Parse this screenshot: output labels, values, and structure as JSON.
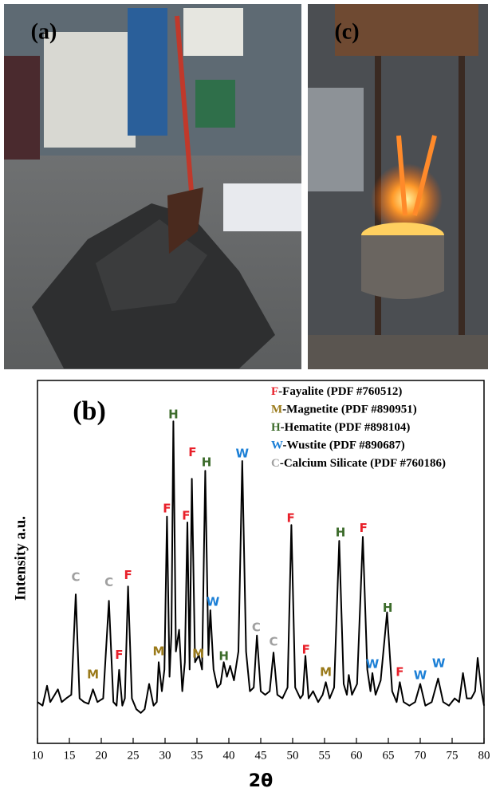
{
  "panel_labels": {
    "a": "(a)",
    "c": "(c)"
  },
  "chart_data": {
    "type": "line",
    "panel_label": "(b)",
    "x_label": "2θ",
    "y_label": "Intensity a.u.",
    "color": "#000000",
    "xlim": [
      10,
      80
    ],
    "ylim": [
      0,
      100
    ],
    "xticks": [
      10,
      15,
      20,
      25,
      30,
      35,
      40,
      45,
      50,
      55,
      60,
      65,
      70,
      75,
      80
    ],
    "x": [
      10,
      10.8,
      11.5,
      12,
      12.7,
      13.2,
      13.8,
      14.5,
      15.3,
      16,
      16.6,
      17.3,
      18,
      18.7,
      19.4,
      20.3,
      21.2,
      21.9,
      22.4,
      22.8,
      23.3,
      23.7,
      24.2,
      24.8,
      25.5,
      26.2,
      26.8,
      27.5,
      28.2,
      28.7,
      29,
      29.5,
      29.9,
      30.3,
      30.7,
      31,
      31.3,
      31.7,
      32.2,
      32.7,
      33.1,
      33.5,
      33.85,
      34.2,
      34.7,
      35.3,
      35.8,
      36.3,
      36.8,
      37.1,
      37.6,
      38.2,
      38.7,
      39.2,
      39.7,
      40.2,
      40.8,
      41.5,
      42.1,
      42.7,
      43.3,
      43.9,
      44.4,
      45,
      45.7,
      46.4,
      47,
      47.6,
      48.4,
      49.2,
      49.8,
      50.4,
      51.2,
      51.6,
      52,
      52.5,
      53.2,
      54,
      54.7,
      55.2,
      55.8,
      56.5,
      57.3,
      58,
      58.5,
      58.8,
      59.3,
      60.1,
      61,
      61.7,
      62.2,
      62.5,
      63,
      63.8,
      64.8,
      65.6,
      66.3,
      66.8,
      67.4,
      68.3,
      69.2,
      70,
      70.8,
      71.8,
      72.8,
      73.6,
      74.5,
      75.4,
      76.1,
      76.7,
      77.3,
      78,
      78.6,
      79,
      79.6,
      80
    ],
    "values": [
      11,
      10,
      15.5,
      11,
      13,
      14.5,
      11,
      12,
      13,
      40.8,
      12,
      11,
      10.5,
      14.5,
      11,
      12,
      39,
      11,
      10,
      19.9,
      10,
      12,
      43,
      12,
      9,
      8,
      9,
      16,
      10,
      11,
      22,
      14,
      20,
      62.3,
      18,
      30,
      88.7,
      25,
      31,
      14,
      22,
      60.7,
      20,
      72.8,
      22,
      24,
      20,
      75,
      24,
      36.4,
      20,
      15,
      16,
      22,
      18,
      21,
      17,
      25,
      77.7,
      25,
      14,
      15,
      29.4,
      14,
      13,
      14,
      24.7,
      13,
      12,
      15,
      60,
      15,
      12,
      13,
      23.8,
      12,
      14,
      11,
      13,
      16.5,
      12,
      15,
      55.6,
      16,
      13,
      18.5,
      13,
      16,
      56.7,
      20,
      14,
      19,
      13,
      17,
      35.8,
      14,
      11,
      16.5,
      11,
      10,
      11,
      16,
      10,
      11,
      17.5,
      11,
      10,
      12,
      11,
      19,
      12,
      12,
      14,
      23.2,
      14,
      10
    ],
    "legend": [
      {
        "letter": "F",
        "text": "-Fayalite (PDF #760512)",
        "color": "#e8202a"
      },
      {
        "letter": "M",
        "text": "-Magnetite (PDF #890951)",
        "color": "#9a7a1a"
      },
      {
        "letter": "H",
        "text": "-Hematite (PDF #898104)",
        "color": "#3b6b2a"
      },
      {
        "letter": "W",
        "text": "-Wustite (PDF #890687)",
        "color": "#1b7fd6"
      },
      {
        "letter": "C",
        "text": "-Calcium Silicate (PDF #760186)",
        "color": "#a0a0a0"
      }
    ],
    "annotations": [
      {
        "text": "C",
        "x": 16,
        "y": 45.5,
        "color": "#a0a0a0"
      },
      {
        "text": "M",
        "x": 18.7,
        "y": 18.5,
        "color": "#9a7a1a"
      },
      {
        "text": "C",
        "x": 21.2,
        "y": 44,
        "color": "#a0a0a0"
      },
      {
        "text": "F",
        "x": 22.8,
        "y": 24,
        "color": "#e8202a"
      },
      {
        "text": "F",
        "x": 24.2,
        "y": 46,
        "color": "#e8202a"
      },
      {
        "text": "M",
        "x": 29,
        "y": 25,
        "color": "#9a7a1a"
      },
      {
        "text": "F",
        "x": 30.3,
        "y": 64.5,
        "color": "#e8202a"
      },
      {
        "text": "H",
        "x": 31.3,
        "y": 90.5,
        "color": "#3b6b2a"
      },
      {
        "text": "F",
        "x": 33.3,
        "y": 62.5,
        "color": "#e8202a"
      },
      {
        "text": "F",
        "x": 34.3,
        "y": 80,
        "color": "#e8202a"
      },
      {
        "text": "M",
        "x": 35.2,
        "y": 24.3,
        "color": "#9a7a1a"
      },
      {
        "text": "H",
        "x": 36.5,
        "y": 77.3,
        "color": "#3b6b2a"
      },
      {
        "text": "W",
        "x": 37.5,
        "y": 38.6,
        "color": "#1b7fd6"
      },
      {
        "text": "H",
        "x": 39.2,
        "y": 23.6,
        "color": "#3b6b2a"
      },
      {
        "text": "W",
        "x": 42.1,
        "y": 79.7,
        "color": "#1b7fd6"
      },
      {
        "text": "C",
        "x": 44.3,
        "y": 31.6,
        "color": "#a0a0a0"
      },
      {
        "text": "C",
        "x": 47,
        "y": 27.6,
        "color": "#a0a0a0"
      },
      {
        "text": "F",
        "x": 49.7,
        "y": 61.8,
        "color": "#e8202a"
      },
      {
        "text": "F",
        "x": 52.1,
        "y": 25.4,
        "color": "#e8202a"
      },
      {
        "text": "M",
        "x": 55.2,
        "y": 19.2,
        "color": "#9a7a1a"
      },
      {
        "text": "H",
        "x": 57.5,
        "y": 57.8,
        "color": "#3b6b2a"
      },
      {
        "text": "F",
        "x": 61.1,
        "y": 59,
        "color": "#e8202a"
      },
      {
        "text": "W",
        "x": 62.5,
        "y": 21.4,
        "color": "#1b7fd6"
      },
      {
        "text": "H",
        "x": 64.9,
        "y": 37,
        "color": "#3b6b2a"
      },
      {
        "text": "F",
        "x": 66.8,
        "y": 19.2,
        "color": "#e8202a"
      },
      {
        "text": "W",
        "x": 70,
        "y": 18.3,
        "color": "#1b7fd6"
      },
      {
        "text": "W",
        "x": 72.9,
        "y": 21.6,
        "color": "#1b7fd6"
      }
    ]
  }
}
